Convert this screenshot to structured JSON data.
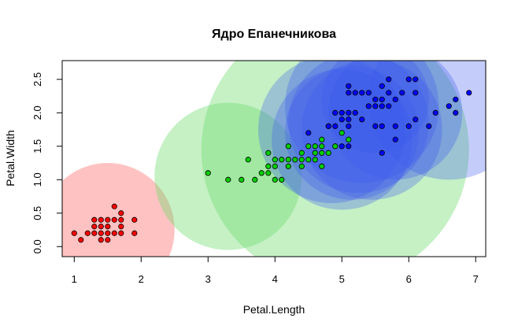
{
  "chart_data": {
    "type": "scatter",
    "title": "Ядро Епанечникова",
    "xlabel": "Petal.Length",
    "ylabel": "Petal.Width",
    "xlim": [
      0.82,
      7.15
    ],
    "ylim": [
      -0.15,
      2.78
    ],
    "x_ticks": [
      "1",
      "2",
      "3",
      "4",
      "5",
      "6",
      "7"
    ],
    "y_ticks": [
      "0.0",
      "0.5",
      "1.0",
      "1.5",
      "2.0",
      "2.5"
    ],
    "grid": false,
    "colors": {
      "class_1": "#ff0000",
      "class_2": "#00cc00",
      "class_3": "#0000ff",
      "circle_1": "rgba(255,110,110,0.42)",
      "circle_2": "rgba(110,220,110,0.40)",
      "circle_3": "rgba(60,90,240,0.30)"
    },
    "series": [
      {
        "points": [
          [
            1.0,
            0.2
          ],
          [
            1.1,
            0.1
          ],
          [
            1.2,
            0.2
          ],
          [
            1.3,
            0.2
          ],
          [
            1.3,
            0.3
          ],
          [
            1.3,
            0.4
          ],
          [
            1.4,
            0.1
          ],
          [
            1.4,
            0.2
          ],
          [
            1.4,
            0.3
          ],
          [
            1.4,
            0.4
          ],
          [
            1.5,
            0.1
          ],
          [
            1.5,
            0.2
          ],
          [
            1.5,
            0.3
          ],
          [
            1.5,
            0.4
          ],
          [
            1.6,
            0.2
          ],
          [
            1.6,
            0.4
          ],
          [
            1.6,
            0.6
          ],
          [
            1.7,
            0.2
          ],
          [
            1.7,
            0.3
          ],
          [
            1.7,
            0.4
          ],
          [
            1.7,
            0.5
          ],
          [
            1.9,
            0.2
          ],
          [
            1.9,
            0.4
          ]
        ]
      },
      {
        "points": [
          [
            3.0,
            1.1
          ],
          [
            3.3,
            1.0
          ],
          [
            3.5,
            1.0
          ],
          [
            3.6,
            1.3
          ],
          [
            3.7,
            1.0
          ],
          [
            3.8,
            1.1
          ],
          [
            3.9,
            1.1
          ],
          [
            3.9,
            1.2
          ],
          [
            3.9,
            1.4
          ],
          [
            4.0,
            1.0
          ],
          [
            4.0,
            1.2
          ],
          [
            4.0,
            1.3
          ],
          [
            4.1,
            1.0
          ],
          [
            4.1,
            1.3
          ],
          [
            4.2,
            1.2
          ],
          [
            4.2,
            1.3
          ],
          [
            4.2,
            1.5
          ],
          [
            4.3,
            1.3
          ],
          [
            4.4,
            1.2
          ],
          [
            4.4,
            1.3
          ],
          [
            4.4,
            1.4
          ],
          [
            4.5,
            1.3
          ],
          [
            4.5,
            1.5
          ],
          [
            4.6,
            1.3
          ],
          [
            4.6,
            1.4
          ],
          [
            4.6,
            1.5
          ],
          [
            4.7,
            1.2
          ],
          [
            4.7,
            1.4
          ],
          [
            4.7,
            1.5
          ],
          [
            4.7,
            1.6
          ],
          [
            4.8,
            1.4
          ],
          [
            4.8,
            1.8
          ],
          [
            4.9,
            1.5
          ],
          [
            5.0,
            1.7
          ],
          [
            5.1,
            1.6
          ]
        ]
      },
      {
        "points": [
          [
            4.5,
            1.7
          ],
          [
            4.8,
            1.8
          ],
          [
            4.9,
            1.8
          ],
          [
            4.9,
            2.0
          ],
          [
            5.0,
            1.5
          ],
          [
            5.0,
            1.9
          ],
          [
            5.0,
            2.0
          ],
          [
            5.1,
            1.5
          ],
          [
            5.1,
            1.8
          ],
          [
            5.1,
            1.9
          ],
          [
            5.1,
            2.0
          ],
          [
            5.1,
            2.3
          ],
          [
            5.1,
            2.4
          ],
          [
            5.2,
            2.0
          ],
          [
            5.2,
            2.3
          ],
          [
            5.3,
            1.9
          ],
          [
            5.3,
            2.3
          ],
          [
            5.4,
            2.1
          ],
          [
            5.4,
            2.3
          ],
          [
            5.5,
            1.8
          ],
          [
            5.5,
            2.1
          ],
          [
            5.5,
            2.2
          ],
          [
            5.6,
            1.4
          ],
          [
            5.6,
            1.8
          ],
          [
            5.6,
            2.1
          ],
          [
            5.6,
            2.2
          ],
          [
            5.6,
            2.4
          ],
          [
            5.7,
            2.1
          ],
          [
            5.7,
            2.3
          ],
          [
            5.7,
            2.5
          ],
          [
            5.8,
            1.6
          ],
          [
            5.8,
            1.8
          ],
          [
            5.8,
            2.2
          ],
          [
            5.9,
            2.3
          ],
          [
            6.0,
            1.8
          ],
          [
            6.0,
            2.5
          ],
          [
            6.1,
            1.9
          ],
          [
            6.1,
            2.3
          ],
          [
            6.1,
            2.5
          ],
          [
            6.3,
            1.8
          ],
          [
            6.4,
            2.0
          ],
          [
            6.6,
            2.1
          ],
          [
            6.7,
            2.0
          ],
          [
            6.7,
            2.2
          ],
          [
            6.9,
            2.3
          ]
        ]
      }
    ],
    "circles": [
      {
        "class": 1,
        "cx": 1.5,
        "cy": 0.25,
        "r": 1.0
      },
      {
        "class": 2,
        "cx": 3.3,
        "cy": 1.05,
        "r": 1.1
      },
      {
        "class": 2,
        "cx": 4.9,
        "cy": 1.45,
        "r": 2.0
      },
      {
        "class": 3,
        "cx": 5.0,
        "cy": 1.6,
        "r": 1.05
      },
      {
        "class": 3,
        "cx": 5.15,
        "cy": 1.7,
        "r": 1.0
      },
      {
        "class": 3,
        "cx": 4.85,
        "cy": 1.75,
        "r": 1.1
      },
      {
        "class": 3,
        "cx": 5.25,
        "cy": 1.85,
        "r": 1.05
      },
      {
        "class": 3,
        "cx": 5.3,
        "cy": 2.1,
        "r": 1.15
      },
      {
        "class": 3,
        "cx": 5.45,
        "cy": 1.75,
        "r": 1.05
      },
      {
        "class": 3,
        "cx": 5.5,
        "cy": 2.2,
        "r": 0.8
      },
      {
        "class": 3,
        "cx": 5.8,
        "cy": 2.0,
        "r": 1.0
      },
      {
        "class": 3,
        "cx": 6.6,
        "cy": 2.2,
        "r": 1.2
      }
    ]
  }
}
